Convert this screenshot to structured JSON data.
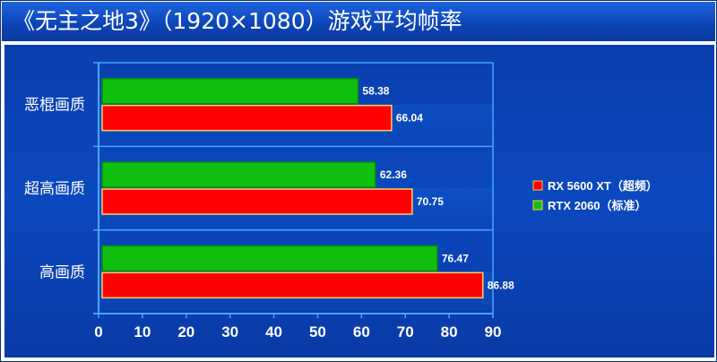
{
  "title": "《无主之地3》（1920×1080）游戏平均帧率",
  "chart_data": {
    "type": "bar",
    "orientation": "horizontal",
    "categories": [
      "恶棍画质",
      "超高画质",
      "高画质"
    ],
    "series": [
      {
        "name": "RX 5600 XT（超频）",
        "color": "#ff0000",
        "values": [
          66.04,
          70.75,
          86.88
        ]
      },
      {
        "name": "RTX 2060（标准）",
        "color": "#0fc00f",
        "values": [
          58.38,
          62.36,
          76.47
        ]
      }
    ],
    "xlim": [
      0,
      90
    ],
    "x_ticks": [
      0,
      10,
      20,
      30,
      40,
      50,
      60,
      70,
      80,
      90
    ],
    "legend_position": "right",
    "grid": false
  }
}
